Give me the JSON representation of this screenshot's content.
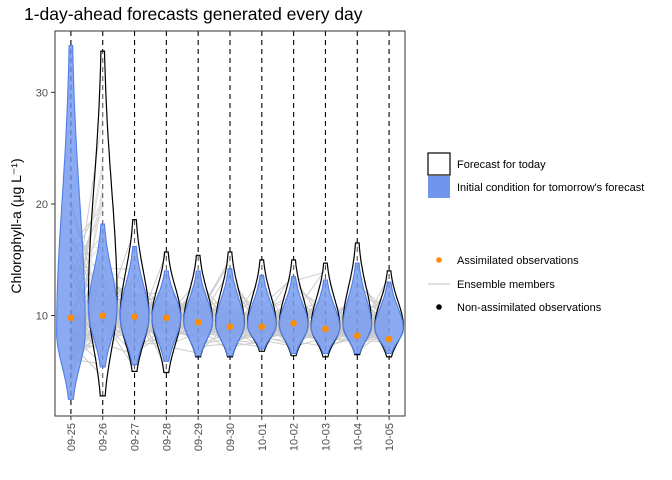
{
  "chart_data": {
    "type": "violin",
    "title": "1-day-ahead forecasts generated every day",
    "ylabel": "Chlorophyll-a (μg L⁻¹)",
    "ylim": [
      1.0,
      35.5
    ],
    "yticks": [
      10,
      20,
      30
    ],
    "categories": [
      "09-25",
      "09-26",
      "09-27",
      "09-28",
      "09-29",
      "09-30",
      "10-01",
      "10-02",
      "10-03",
      "10-04",
      "10-05"
    ],
    "forecast_for_today": {
      "min": [
        null,
        2.8,
        5.0,
        4.9,
        6.3,
        6.3,
        6.8,
        6.4,
        6.3,
        6.5,
        6.3
      ],
      "max": [
        null,
        33.7,
        18.6,
        15.7,
        15.4,
        15.7,
        15.0,
        15.0,
        14.7,
        16.5,
        14.0
      ],
      "mode": [
        null,
        11.2,
        10.0,
        9.9,
        9.5,
        9.3,
        9.2,
        9.2,
        9.0,
        9.2,
        9.0
      ]
    },
    "initial_condition": {
      "min": [
        2.5,
        5.4,
        5.6,
        5.9,
        6.4,
        6.4,
        7.0,
        6.6,
        6.6,
        6.6,
        6.6
      ],
      "max": [
        34.2,
        18.2,
        16.2,
        14.0,
        14.0,
        14.2,
        13.6,
        13.5,
        13.2,
        14.7,
        13.0
      ],
      "mode": [
        8.5,
        10.5,
        9.9,
        9.8,
        9.4,
        9.2,
        9.1,
        9.1,
        8.9,
        9.0,
        8.8
      ]
    },
    "assimilated_observations": [
      9.8,
      10.0,
      9.9,
      9.8,
      9.4,
      9.0,
      9.0,
      9.3,
      8.8,
      8.2,
      7.9
    ],
    "legend": {
      "fill_items": [
        "Forecast for today",
        "Initial condition for tomorrow's forecast"
      ],
      "point_items": [
        "Assimilated observations",
        "Ensemble members",
        "Non-assimilated observations"
      ]
    },
    "colors": {
      "initial_fill": "#6f95ee",
      "initial_line": "#4f7fe6",
      "observation": "#ff8c00",
      "ensemble": "#cccccc",
      "forecast_line": "#000000"
    },
    "grid": false
  }
}
